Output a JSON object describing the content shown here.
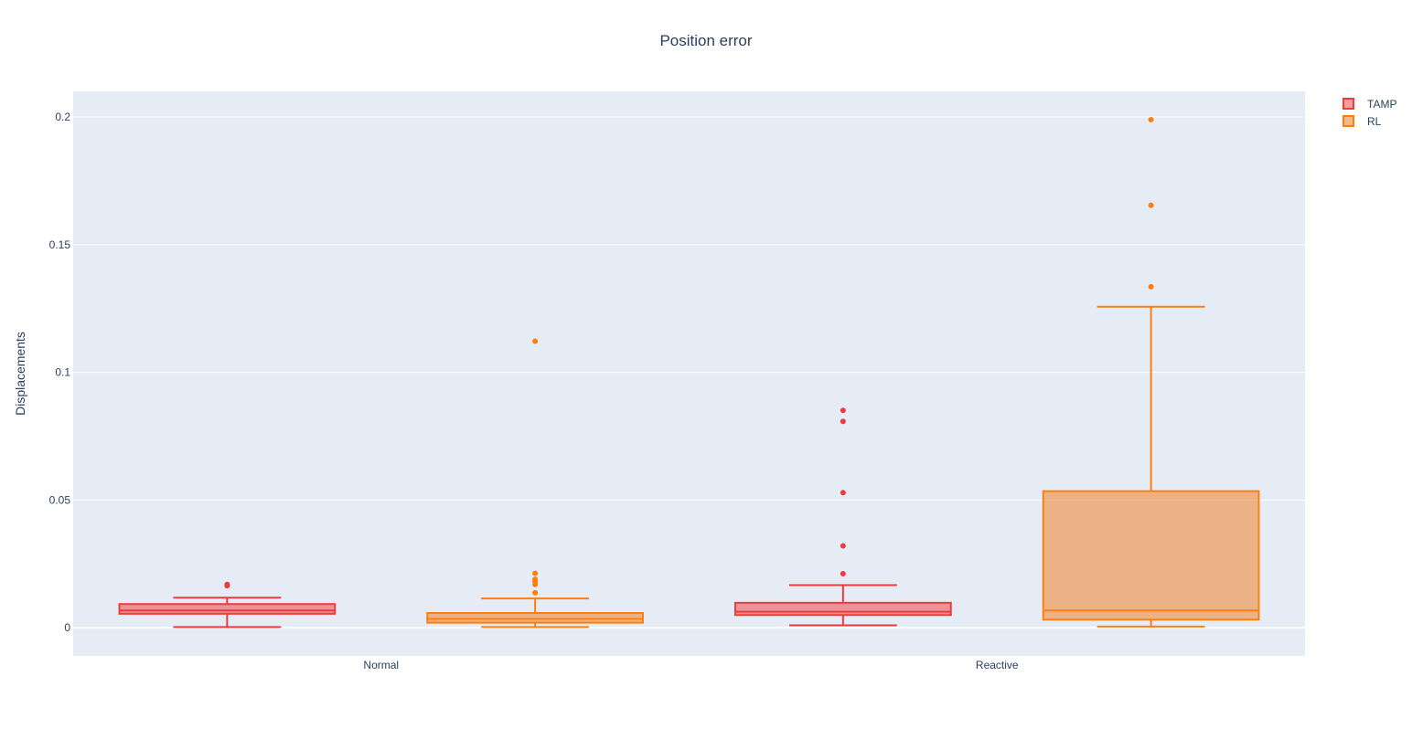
{
  "chart_data": {
    "type": "box",
    "title": "Position error",
    "xlabel": "",
    "ylabel": "Displacements",
    "categories": [
      "Normal",
      "Reactive"
    ],
    "ylim": [
      -0.011,
      0.21
    ],
    "yticks": [
      0,
      0.05,
      0.1,
      0.15,
      0.2
    ],
    "ytick_labels": [
      "0",
      "0.05",
      "0.1",
      "0.15",
      "0.2"
    ],
    "grid": true,
    "legend_position": "top-right",
    "series": [
      {
        "name": "TAMP",
        "color": "#ef3b3b",
        "fill": "rgba(239,59,59,0.5)",
        "boxes": [
          {
            "category": "Normal",
            "min": 0.0003,
            "q1": 0.0055,
            "median": 0.0068,
            "q3": 0.0093,
            "max": 0.0118,
            "outliers": [
              0.0165,
              0.017
            ]
          },
          {
            "category": "Reactive",
            "min": 0.001,
            "q1": 0.005,
            "median": 0.0063,
            "q3": 0.0098,
            "max": 0.0167,
            "outliers": [
              0.0212,
              0.0321,
              0.0529,
              0.0808,
              0.0851
            ]
          }
        ]
      },
      {
        "name": "RL",
        "color": "#ff7f0e",
        "fill": "rgba(240,140,60,0.6)",
        "boxes": [
          {
            "category": "Normal",
            "min": 0.0003,
            "q1": 0.002,
            "median": 0.0035,
            "q3": 0.0058,
            "max": 0.0115,
            "outliers": [
              0.0137,
              0.017,
              0.018,
              0.019,
              0.0213,
              0.1122
            ]
          },
          {
            "category": "Reactive",
            "min": 0.0005,
            "q1": 0.0032,
            "median": 0.0068,
            "q3": 0.0535,
            "max": 0.1257,
            "outliers": [
              0.1335,
              0.1654,
              0.1989
            ]
          }
        ]
      }
    ]
  }
}
